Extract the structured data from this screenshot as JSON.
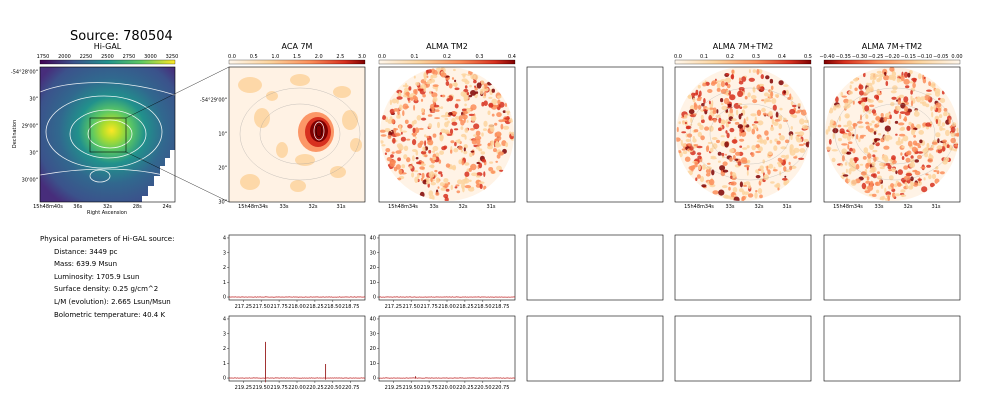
{
  "source_title": "Source: 780504",
  "params": {
    "heading": "Physical parameters of Hi-GAL source:",
    "lines": [
      "Distance: 3449 pc",
      "Mass: 639.9 Msun",
      "Luminosity: 1705.9 Lsun",
      "Surface density: 0.25 g/cm^2",
      "L/M (evolution): 2.665 Lsun/Msun",
      "Bolometric temperature: 40.4 K"
    ]
  },
  "colors": {
    "viridis": [
      "#440154",
      "#3b528b",
      "#21918c",
      "#5ec962",
      "#fde725"
    ],
    "orrd": [
      "#fff7ec",
      "#fdd49e",
      "#fc8d59",
      "#d7301f",
      "#7f0000"
    ],
    "spectrum_line": "#8b0000",
    "zero_line": "#d62728"
  },
  "chart_data": [
    {
      "type": "heatmap",
      "title": "Hi-GAL",
      "colorbar_ticks": [
        "1750",
        "2000",
        "2250",
        "2500",
        "2750",
        "3000",
        "3250"
      ],
      "xlabel": "Right Ascension",
      "ylabel": "Declination",
      "xticks": [
        "15h48m40s",
        "36s",
        "32s",
        "28s",
        "24s"
      ],
      "yticks": [
        "-54°28'00\"",
        "30\"",
        "29'00\"",
        "30\"",
        "30'00\""
      ]
    },
    {
      "type": "heatmap",
      "title": "ACA 7M",
      "colorbar_ticks": [
        "0.0",
        "0.5",
        "1.0",
        "1.5",
        "2.0",
        "2.5",
        "3.0"
      ],
      "xticks": [
        "15h48m34s",
        "33s",
        "32s",
        "31s"
      ],
      "yticks": [
        "-54°29'00\"",
        "10\"",
        "20\"",
        "30\""
      ]
    },
    {
      "type": "heatmap",
      "title": "ALMA TM2",
      "colorbar_ticks": [
        "0.0",
        "0.1",
        "0.2",
        "0.3",
        "0.4"
      ],
      "xticks": [
        "15h48m34s",
        "33s",
        "32s",
        "31s"
      ]
    },
    {
      "type": "heatmap",
      "title": "ALMA 7M+TM2",
      "colorbar_ticks": [
        "0.0",
        "0.1",
        "0.2",
        "0.3",
        "0.4",
        "0.5"
      ],
      "xticks": [
        "15h48m34s",
        "33s",
        "32s",
        "31s"
      ]
    },
    {
      "type": "heatmap",
      "title": "ALMA 7M+TM2",
      "colorbar_ticks": [
        "−0.40",
        "−0.35",
        "−0.30",
        "−0.25",
        "−0.20",
        "−0.15",
        "−0.10",
        "−0.05",
        "0.00"
      ],
      "xticks": [
        "15h48m34s",
        "33s",
        "32s",
        "31s"
      ]
    },
    {
      "type": "line",
      "xticks": [
        "217.25",
        "217.50",
        "217.75",
        "218.00",
        "218.25",
        "218.50",
        "218.75"
      ],
      "yticks": [
        "0",
        "1",
        "2",
        "3",
        "4"
      ],
      "xlim": [
        217.05,
        218.95
      ],
      "ylim": [
        -0.2,
        4.2
      ],
      "peaks": []
    },
    {
      "type": "line",
      "xticks": [
        "217.25",
        "217.50",
        "217.75",
        "218.00",
        "218.25",
        "218.50",
        "218.75"
      ],
      "yticks": [
        "0",
        "10",
        "20",
        "30",
        "40"
      ],
      "xlim": [
        217.05,
        218.95
      ],
      "ylim": [
        -2,
        42
      ],
      "peaks": []
    },
    {
      "type": "line",
      "xticks": [
        "219.25",
        "219.50",
        "219.75",
        "220.00",
        "220.25",
        "220.50",
        "220.75"
      ],
      "yticks": [
        "0",
        "1",
        "2",
        "3",
        "4"
      ],
      "xlim": [
        219.05,
        220.95
      ],
      "ylim": [
        -0.2,
        4.2
      ],
      "peaks": [
        {
          "x": 219.56,
          "y": 2.45
        },
        {
          "x": 220.4,
          "y": 0.95
        }
      ]
    },
    {
      "type": "line",
      "xticks": [
        "219.25",
        "219.50",
        "219.75",
        "220.00",
        "220.25",
        "220.50",
        "220.75"
      ],
      "yticks": [
        "0",
        "10",
        "20",
        "30",
        "40"
      ],
      "xlim": [
        219.05,
        220.95
      ],
      "ylim": [
        -2,
        42
      ],
      "peaks": [
        {
          "x": 219.56,
          "y": 1.2
        }
      ]
    }
  ]
}
